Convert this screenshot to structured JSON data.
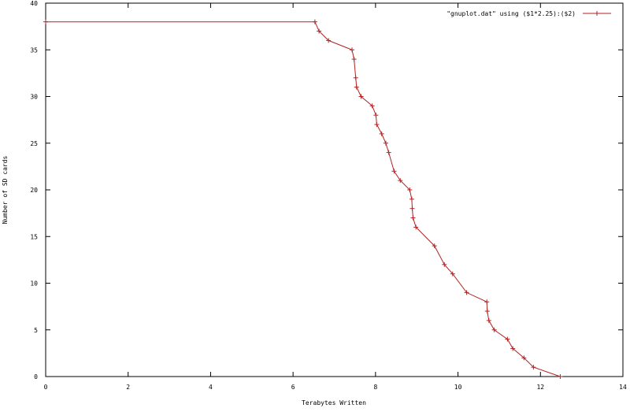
{
  "chart_data": {
    "type": "line",
    "title": "",
    "xlabel": "Terabytes Written",
    "ylabel": "Number of SD cards",
    "xlim": [
      0,
      14
    ],
    "ylim": [
      0,
      40
    ],
    "xticks": [
      "0",
      "2",
      "4",
      "6",
      "8",
      "10",
      "12",
      "14"
    ],
    "yticks": [
      "0",
      "5",
      "10",
      "15",
      "20",
      "25",
      "30",
      "35",
      "40"
    ],
    "grid": false,
    "legend_position": "top-right",
    "series": [
      {
        "name": "\"gnuplot.dat\" using ($1*2.25):($2)",
        "color": "#b22222",
        "marker": "plus",
        "x": [
          0.0,
          6.53,
          6.63,
          6.86,
          7.43,
          7.48,
          7.52,
          7.54,
          7.65,
          7.92,
          8.01,
          8.03,
          8.15,
          8.25,
          8.32,
          8.45,
          8.6,
          8.83,
          8.88,
          8.89,
          8.91,
          8.98,
          9.43,
          9.67,
          9.87,
          10.21,
          10.7,
          10.71,
          10.75,
          10.88,
          11.2,
          11.33,
          11.6,
          11.83,
          12.48
        ],
        "y": [
          38,
          38,
          37,
          36,
          35,
          34,
          32,
          31,
          30,
          29,
          28,
          27,
          26,
          25,
          24,
          22,
          21,
          20,
          19,
          18,
          17,
          16,
          14,
          12,
          11,
          9,
          8,
          7,
          6,
          5,
          4,
          3,
          2,
          1,
          0
        ]
      }
    ]
  }
}
